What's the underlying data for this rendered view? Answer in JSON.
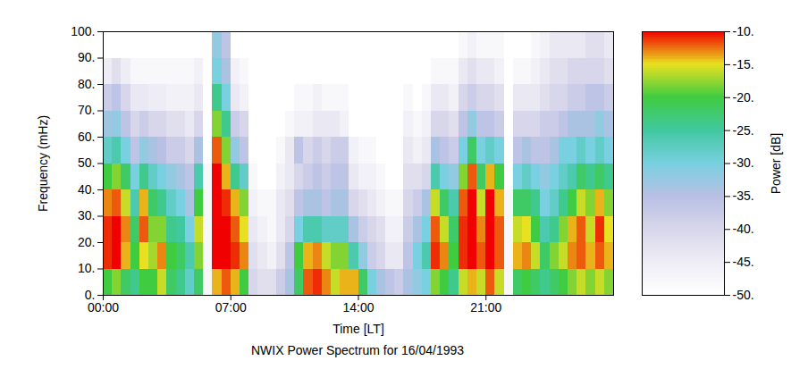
{
  "chart_data": {
    "type": "heatmap",
    "title": "NWIX Power Spectrum for 16/04/1993",
    "xlabel": "Time [LT]",
    "ylabel": "Frequency (mHz)",
    "xlim": [
      0,
      28
    ],
    "ylim": [
      0,
      100
    ],
    "xticks": [
      {
        "value": 0,
        "label": "00:00"
      },
      {
        "value": 7,
        "label": "07:00"
      },
      {
        "value": 14,
        "label": "14:00"
      },
      {
        "value": 21,
        "label": "21:00"
      }
    ],
    "yticks": [
      {
        "value": 0,
        "label": "0."
      },
      {
        "value": 10,
        "label": "10."
      },
      {
        "value": 20,
        "label": "20."
      },
      {
        "value": 30,
        "label": "30."
      },
      {
        "value": 40,
        "label": "40."
      },
      {
        "value": 50,
        "label": "50."
      },
      {
        "value": 60,
        "label": "60."
      },
      {
        "value": 70,
        "label": "70."
      },
      {
        "value": 80,
        "label": "80."
      },
      {
        "value": 90,
        "label": "90."
      },
      {
        "value": 100,
        "label": "100."
      }
    ],
    "x_bins": [
      0,
      0.5,
      1,
      1.5,
      2,
      2.5,
      3,
      3.5,
      4,
      4.5,
      5,
      5.5,
      6,
      6.5,
      7,
      7.5,
      8,
      8.5,
      9,
      9.5,
      10,
      10.5,
      11,
      11.5,
      12,
      12.5,
      13,
      13.5,
      14,
      14.5,
      15,
      15.5,
      16,
      16.5,
      17,
      17.5,
      18,
      18.5,
      19,
      19.5,
      20,
      20.5,
      21,
      21.5,
      22,
      22.5,
      23,
      23.5,
      24,
      24.5,
      25,
      25.5,
      26,
      26.5,
      27,
      27.5,
      28
    ],
    "y_bins": [
      0,
      10,
      20,
      30,
      40,
      50,
      60,
      70,
      80,
      90,
      100
    ],
    "values": [
      [
        -20,
        -11,
        -11,
        -13,
        -20,
        -28,
        -33,
        -38,
        -45,
        -50
      ],
      [
        -18,
        -10,
        -10,
        -12,
        -18,
        -26,
        -32,
        -36,
        -42,
        -50
      ],
      [
        -22,
        -14,
        -13,
        -16,
        -22,
        -30,
        -36,
        -40,
        -45,
        -50
      ],
      [
        -24,
        -20,
        -22,
        -26,
        -30,
        -36,
        -40,
        -44,
        -48,
        -50
      ],
      [
        -20,
        -15,
        -12,
        -14,
        -24,
        -32,
        -38,
        -44,
        -48,
        -50
      ],
      [
        -20,
        -17,
        -18,
        -22,
        -28,
        -34,
        -40,
        -45,
        -48,
        -50
      ],
      [
        -16,
        -13,
        -18,
        -24,
        -30,
        -35,
        -40,
        -45,
        -48,
        -50
      ],
      [
        -22,
        -20,
        -24,
        -28,
        -32,
        -38,
        -42,
        -46,
        -48,
        -50
      ],
      [
        -24,
        -22,
        -25,
        -30,
        -34,
        -38,
        -42,
        -46,
        -48,
        -50
      ],
      [
        -28,
        -26,
        -30,
        -34,
        -36,
        -40,
        -44,
        -46,
        -48,
        -50
      ],
      [
        -22,
        -18,
        -16,
        -20,
        -26,
        -34,
        -40,
        -44,
        -46,
        -50
      ],
      [
        -48,
        -48,
        -48,
        -48,
        -48,
        -50,
        -50,
        -50,
        -50,
        -50
      ],
      [
        -14,
        -10,
        -10,
        -10,
        -10,
        -12,
        -18,
        -24,
        -30,
        -32
      ],
      [
        -12,
        -10,
        -10,
        -11,
        -14,
        -18,
        -24,
        -30,
        -34,
        -36
      ],
      [
        -14,
        -11,
        -12,
        -14,
        -24,
        -32,
        -38,
        -44,
        -46,
        -50
      ],
      [
        -20,
        -13,
        -15,
        -18,
        -28,
        -36,
        -40,
        -46,
        -48,
        -50
      ],
      [
        -40,
        -42,
        -44,
        -46,
        -48,
        -50,
        -50,
        -50,
        -50,
        -50
      ],
      [
        -42,
        -44,
        -46,
        -48,
        -50,
        -50,
        -50,
        -50,
        -50,
        -50
      ],
      [
        -42,
        -46,
        -48,
        -48,
        -50,
        -50,
        -50,
        -50,
        -50,
        -50
      ],
      [
        -38,
        -42,
        -44,
        -44,
        -46,
        -48,
        -50,
        -50,
        -50,
        -50
      ],
      [
        -34,
        -36,
        -40,
        -42,
        -44,
        -44,
        -48,
        -50,
        -50,
        -50
      ],
      [
        -22,
        -20,
        -30,
        -36,
        -40,
        -36,
        -46,
        -48,
        -50,
        -50
      ],
      [
        -12,
        -14,
        -26,
        -34,
        -38,
        -40,
        -46,
        -48,
        -50,
        -50
      ],
      [
        -11,
        -13,
        -26,
        -34,
        -36,
        -38,
        -44,
        -46,
        -50,
        -50
      ],
      [
        -13,
        -16,
        -28,
        -36,
        -38,
        -40,
        -44,
        -48,
        -50,
        -50
      ],
      [
        -16,
        -18,
        -28,
        -34,
        -36,
        -38,
        -44,
        -48,
        -50,
        -50
      ],
      [
        -14,
        -18,
        -28,
        -34,
        -36,
        -38,
        -46,
        -48,
        -50,
        -50
      ],
      [
        -14,
        -26,
        -34,
        -40,
        -44,
        -46,
        -50,
        -50,
        -50,
        -50
      ],
      [
        -22,
        -32,
        -38,
        -42,
        -46,
        -48,
        -50,
        -50,
        -50,
        -50
      ],
      [
        -30,
        -38,
        -40,
        -44,
        -46,
        -48,
        -50,
        -50,
        -50,
        -50
      ],
      [
        -34,
        -40,
        -42,
        -46,
        -48,
        -50,
        -50,
        -50,
        -50,
        -50
      ],
      [
        -36,
        -44,
        -46,
        -48,
        -50,
        -50,
        -50,
        -50,
        -50,
        -50
      ],
      [
        -38,
        -44,
        -46,
        -48,
        -50,
        -50,
        -50,
        -50,
        -50,
        -50
      ],
      [
        -34,
        -36,
        -38,
        -40,
        -42,
        -44,
        -46,
        -48,
        -50,
        -50
      ],
      [
        -32,
        -30,
        -34,
        -38,
        -42,
        -46,
        -48,
        -50,
        -50,
        -50
      ],
      [
        -30,
        -26,
        -30,
        -34,
        -40,
        -44,
        -46,
        -48,
        -50,
        -50
      ],
      [
        -18,
        -11,
        -12,
        -16,
        -26,
        -34,
        -40,
        -44,
        -48,
        -50
      ],
      [
        -20,
        -13,
        -16,
        -22,
        -30,
        -36,
        -40,
        -44,
        -48,
        -50
      ],
      [
        -24,
        -20,
        -22,
        -26,
        -32,
        -38,
        -42,
        -46,
        -48,
        -50
      ],
      [
        -16,
        -11,
        -11,
        -12,
        -18,
        -30,
        -36,
        -40,
        -44,
        -48
      ],
      [
        -14,
        -10,
        -10,
        -10,
        -12,
        -22,
        -32,
        -38,
        -42,
        -46
      ],
      [
        -16,
        -12,
        -13,
        -16,
        -22,
        -30,
        -36,
        -40,
        -44,
        -48
      ],
      [
        -12,
        -10,
        -10,
        -10,
        -14,
        -28,
        -36,
        -40,
        -44,
        -48
      ],
      [
        -16,
        -12,
        -12,
        -14,
        -20,
        -30,
        -38,
        -42,
        -46,
        -48
      ],
      [
        -48,
        -48,
        -48,
        -48,
        -50,
        -50,
        -50,
        -50,
        -50,
        -50
      ],
      [
        -22,
        -14,
        -16,
        -22,
        -30,
        -36,
        -40,
        -44,
        -48,
        -50
      ],
      [
        -20,
        -13,
        -15,
        -22,
        -28,
        -34,
        -40,
        -44,
        -48,
        -50
      ],
      [
        -22,
        -16,
        -20,
        -24,
        -30,
        -36,
        -40,
        -44,
        -46,
        -48
      ],
      [
        -24,
        -22,
        -26,
        -30,
        -32,
        -36,
        -38,
        -42,
        -44,
        -46
      ],
      [
        -22,
        -18,
        -24,
        -28,
        -30,
        -34,
        -38,
        -40,
        -42,
        -44
      ],
      [
        -20,
        -16,
        -18,
        -24,
        -28,
        -30,
        -36,
        -40,
        -42,
        -44
      ],
      [
        -18,
        -13,
        -14,
        -20,
        -26,
        -30,
        -34,
        -38,
        -40,
        -44
      ],
      [
        -16,
        -12,
        -12,
        -16,
        -22,
        -28,
        -34,
        -38,
        -40,
        -44
      ],
      [
        -18,
        -14,
        -16,
        -18,
        -24,
        -30,
        -34,
        -36,
        -40,
        -42
      ],
      [
        -16,
        -12,
        -11,
        -14,
        -22,
        -28,
        -32,
        -36,
        -40,
        -42
      ],
      [
        -18,
        -14,
        -15,
        -18,
        -24,
        -30,
        -34,
        -38,
        -42,
        -44
      ]
    ],
    "colorbar": {
      "label": "Power [dB]",
      "range": [
        -50,
        -10
      ],
      "ticks": [
        {
          "value": -10,
          "label": "-10."
        },
        {
          "value": -15,
          "label": "-15."
        },
        {
          "value": -20,
          "label": "-20."
        },
        {
          "value": -25,
          "label": "-25."
        },
        {
          "value": -30,
          "label": "-30."
        },
        {
          "value": -35,
          "label": "-35."
        },
        {
          "value": -40,
          "label": "-40."
        },
        {
          "value": -45,
          "label": "-45."
        },
        {
          "value": -50,
          "label": "-50."
        }
      ]
    }
  }
}
